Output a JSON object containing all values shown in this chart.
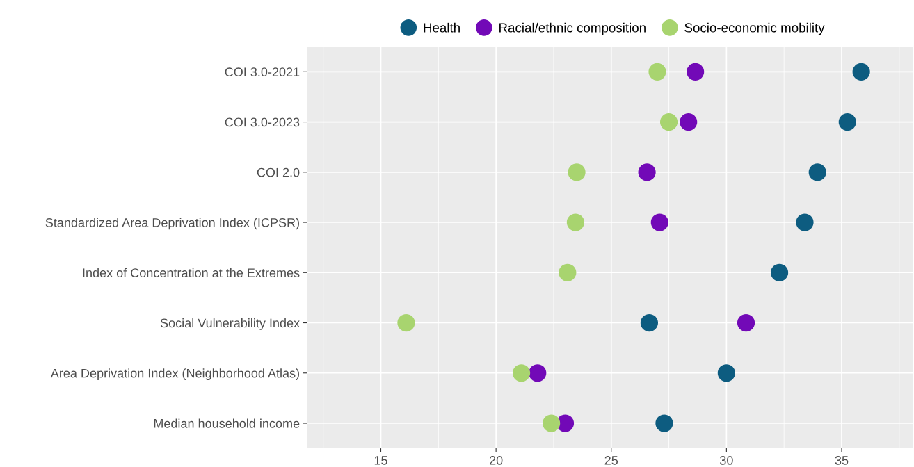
{
  "chart_data": {
    "type": "scatter",
    "categories": [
      "COI 3.0-2021",
      "COI 3.0-2023",
      "COI 2.0",
      "Standardized Area Deprivation Index (ICPSR)",
      "Index of Concentration at the Extremes",
      "Social Vulnerability Index",
      "Area Deprivation Index (Neighborhood Atlas)",
      "Median household income"
    ],
    "orientation": "horizontal",
    "series": [
      {
        "name": "Health",
        "color": "#0d5c80",
        "values": [
          35.85,
          35.25,
          33.95,
          33.4,
          32.3,
          26.65,
          30.0,
          27.3
        ]
      },
      {
        "name": "Racial/ethnic composition",
        "color": "#7209b7",
        "values": [
          28.65,
          28.35,
          26.55,
          27.1,
          null,
          30.85,
          21.8,
          23.0
        ]
      },
      {
        "name": "Socio-economic mobility",
        "color": "#a8d46f",
        "values": [
          27.0,
          27.5,
          23.5,
          23.45,
          23.1,
          16.1,
          21.1,
          22.4
        ]
      }
    ],
    "xlim": [
      11.8,
      38.1
    ],
    "xticks": [
      15,
      20,
      25,
      30,
      35
    ],
    "grid": true,
    "legend": "top",
    "marker": "circle"
  }
}
